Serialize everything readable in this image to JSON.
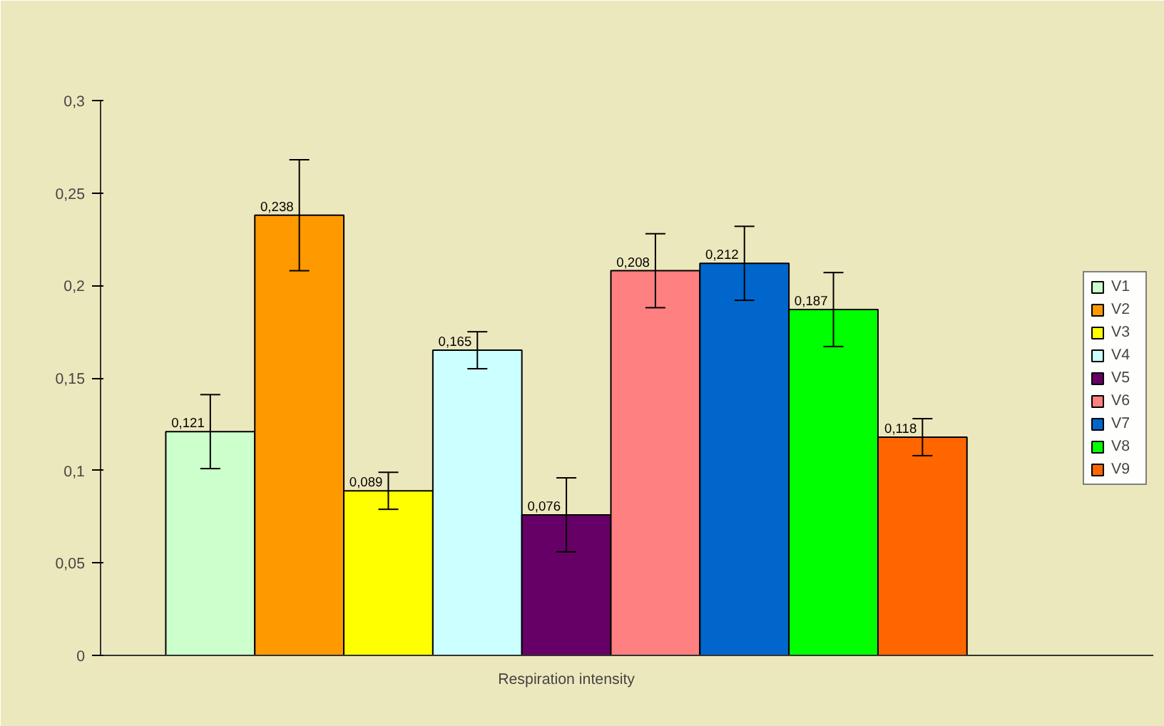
{
  "chart_data": {
    "type": "bar",
    "categories": [
      "Respiration intensity"
    ],
    "series": [
      {
        "name": "V1",
        "color": "#ccffcc",
        "values": [
          0.121
        ],
        "errors": [
          0.02
        ],
        "value_labels": [
          "0,121"
        ]
      },
      {
        "name": "V2",
        "color": "#ff9900",
        "values": [
          0.238
        ],
        "errors": [
          0.03
        ],
        "value_labels": [
          "0,238"
        ]
      },
      {
        "name": "V3",
        "color": "#ffff00",
        "values": [
          0.089
        ],
        "errors": [
          0.01
        ],
        "value_labels": [
          "0,089"
        ]
      },
      {
        "name": "V4",
        "color": "#ccffff",
        "values": [
          0.165
        ],
        "errors": [
          0.01
        ],
        "value_labels": [
          "0,165"
        ]
      },
      {
        "name": "V5",
        "color": "#660066",
        "values": [
          0.076
        ],
        "errors": [
          0.02
        ],
        "value_labels": [
          "0,076"
        ]
      },
      {
        "name": "V6",
        "color": "#ff8080",
        "values": [
          0.208
        ],
        "errors": [
          0.02
        ],
        "value_labels": [
          "0,208"
        ]
      },
      {
        "name": "V7",
        "color": "#0066cc",
        "values": [
          0.212
        ],
        "errors": [
          0.02
        ],
        "value_labels": [
          "0,212"
        ]
      },
      {
        "name": "V8",
        "color": "#00ff00",
        "values": [
          0.187
        ],
        "errors": [
          0.02
        ],
        "value_labels": [
          "0,187"
        ]
      },
      {
        "name": "V9",
        "color": "#ff6600",
        "values": [
          0.118
        ],
        "errors": [
          0.01
        ],
        "value_labels": [
          "0,118"
        ]
      }
    ],
    "ylim": [
      0,
      0.3
    ],
    "yticks": [
      0,
      {
        "value": 0.05,
        "label": "0,05"
      },
      {
        "value": 0.1,
        "label": "0,1"
      },
      {
        "value": 0.15,
        "label": "0,15"
      },
      {
        "value": 0.2,
        "label": "0,2"
      },
      {
        "value": 0.25,
        "label": "0,25"
      },
      {
        "value": 0.3,
        "label": "0,3"
      }
    ],
    "grid": false,
    "legend": "right"
  }
}
